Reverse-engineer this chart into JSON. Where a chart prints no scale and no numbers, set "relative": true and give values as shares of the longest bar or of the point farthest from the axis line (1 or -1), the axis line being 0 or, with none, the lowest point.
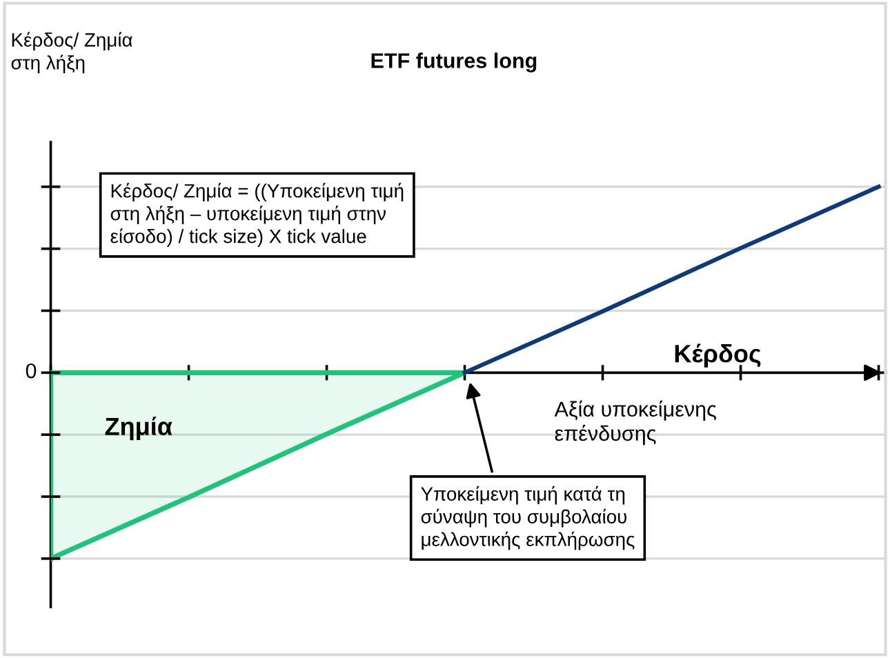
{
  "chart_data": {
    "type": "line",
    "title": "ETF futures long",
    "xlabel": "Αξία υποκείμενης\nεπένδυσης",
    "categories": [
      null,
      null,
      null,
      null,
      null,
      null,
      null
    ],
    "relative": true,
    "grid": "y",
    "legend": false,
    "series": [
      {
        "name": "Ζημία",
        "type": "area",
        "color": "#1fc47a",
        "values": [
          -1,
          -0.67,
          -0.33,
          0,
          null,
          null,
          null
        ]
      },
      {
        "name": "Κέρδος",
        "color": "#0d3b7a",
        "values": [
          null,
          null,
          null,
          0,
          0.33,
          0.67,
          1
        ]
      }
    ],
    "annotations": [
      "0",
      "Κέρδος/ Ζημία = ((Υποκείμενη τιμή\nστη λήξη – υποκείμενη τιμή στην\nείσοδο) / tick size) X tick value",
      "Υποκείμενη τιμή κατά τη\nσύναψη του συμβολαίου\nμελλοντικής εκπλήρωσης",
      "Κέρδος/ Ζημία\nστη λήξη"
    ]
  }
}
